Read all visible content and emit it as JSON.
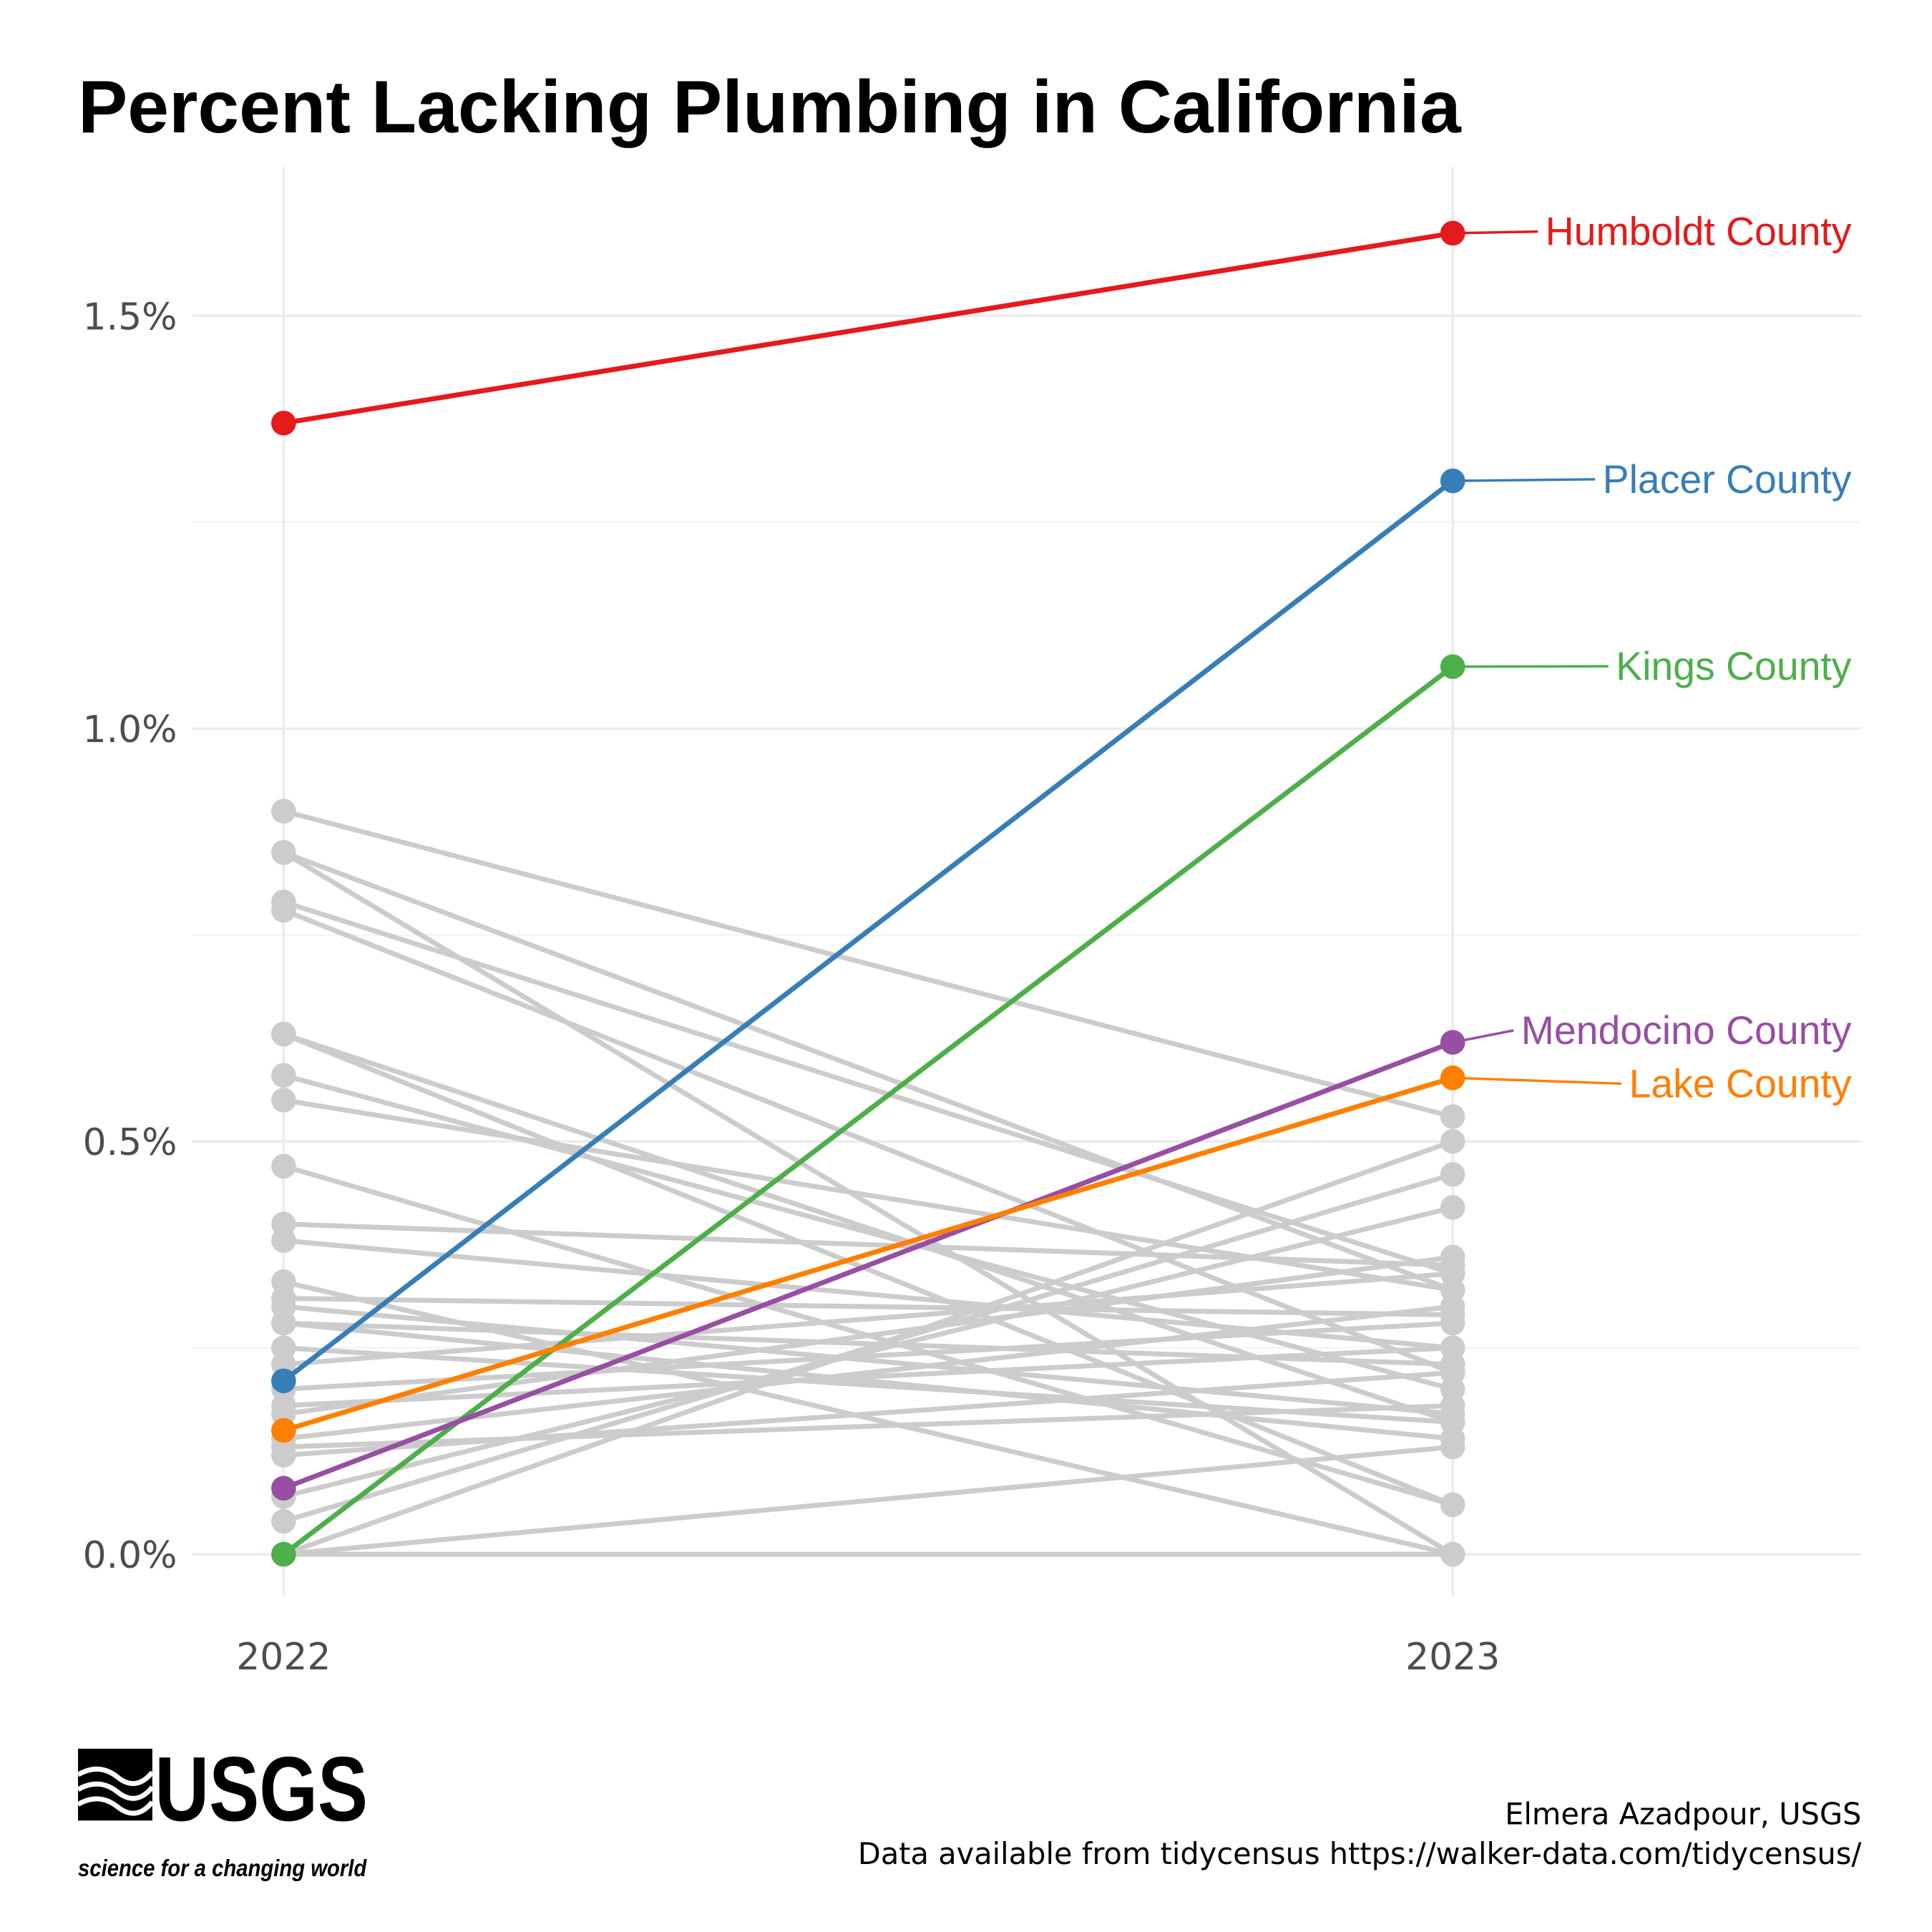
{
  "chart_data": {
    "type": "line",
    "title": "Percent Lacking Plumbing in California",
    "x": [
      "2022",
      "2023"
    ],
    "y_ticks": [
      "0.0%",
      "0.5%",
      "1.0%",
      "1.5%"
    ],
    "y_tick_values": [
      0,
      0.5,
      1.0,
      1.5
    ],
    "y_minor_values": [
      0.25,
      0.75,
      1.25
    ],
    "ylim": [
      -0.05,
      1.68
    ],
    "unit": "percent",
    "grid": true,
    "highlight": [
      {
        "name": "Humboldt County",
        "color": "#e41a1c",
        "values": [
          1.37,
          1.6
        ]
      },
      {
        "name": "Placer County",
        "color": "#377eb8",
        "values": [
          0.21,
          1.3
        ]
      },
      {
        "name": "Kings County",
        "color": "#4daf4a",
        "values": [
          0.0,
          1.075
        ]
      },
      {
        "name": "Mendocino County",
        "color": "#984ea3",
        "values": [
          0.08,
          0.62
        ]
      },
      {
        "name": "Lake County",
        "color": "#ff7f00",
        "values": [
          0.15,
          0.577
        ]
      }
    ],
    "other_color": "#cccccc",
    "others": [
      [
        0.9,
        0.53
      ],
      [
        0.85,
        0.0
      ],
      [
        0.85,
        0.32
      ],
      [
        0.79,
        0.34
      ],
      [
        0.78,
        0.22
      ],
      [
        0.63,
        0.06
      ],
      [
        0.63,
        0.16
      ],
      [
        0.58,
        0.2
      ],
      [
        0.55,
        0.32
      ],
      [
        0.47,
        0.06
      ],
      [
        0.4,
        0.35
      ],
      [
        0.38,
        0.25
      ],
      [
        0.33,
        0.0
      ],
      [
        0.31,
        0.29
      ],
      [
        0.3,
        0.17
      ],
      [
        0.28,
        0.23
      ],
      [
        0.28,
        0.14
      ],
      [
        0.25,
        0.16
      ],
      [
        0.23,
        0.34
      ],
      [
        0.2,
        0.28
      ],
      [
        0.18,
        0.25
      ],
      [
        0.17,
        0.36
      ],
      [
        0.14,
        0.3
      ],
      [
        0.13,
        0.18
      ],
      [
        0.12,
        0.22
      ],
      [
        0.07,
        0.42
      ],
      [
        0.04,
        0.46
      ],
      [
        0.0,
        0.5
      ],
      [
        0.0,
        0.13
      ],
      [
        0.0,
        0.0
      ]
    ]
  },
  "logo": {
    "text": "USGS",
    "tagline": "science for a changing world"
  },
  "caption": {
    "author": "Elmera Azadpour, USGS",
    "source": "Data available from tidycensus https://walker-data.com/tidycensus/"
  }
}
